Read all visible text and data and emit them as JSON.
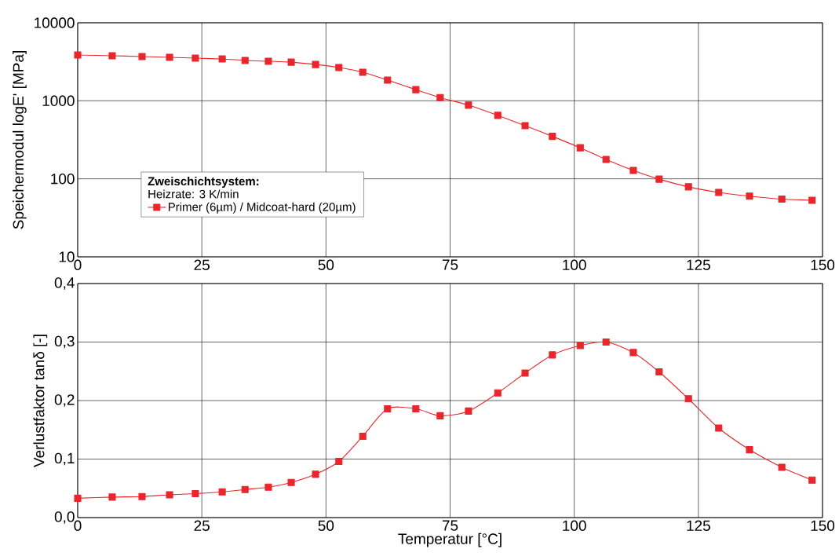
{
  "chart_data": [
    {
      "type": "line",
      "ylabel": "Speichermodul logE' [MPa]",
      "legend_title": "Zweischichtsystem:",
      "annotations": [
        "Heizrate: 3 K/min"
      ],
      "x": [
        0,
        6.95,
        12.96,
        18.5,
        23.7,
        29.1,
        33.7,
        38.4,
        43.0,
        47.9,
        52.6,
        57.4,
        62.4,
        68.1,
        73.0,
        78.7,
        84.6,
        90.1,
        95.6,
        101.2,
        106.4,
        111.9,
        117.1,
        123.0,
        129.1,
        135.3,
        141.8,
        147.9
      ],
      "series": [
        {
          "name": "Primer (6µm) / Midcoat-hard (20µm)",
          "color": "#e8262b",
          "values": [
            3860,
            3780,
            3690,
            3610,
            3520,
            3440,
            3290,
            3210,
            3130,
            2920,
            2670,
            2320,
            1840,
            1390,
            1100,
            880,
            650,
            480,
            350,
            250,
            177,
            128,
            99,
            79,
            67,
            60,
            55,
            53
          ]
        }
      ],
      "xlim": [
        0,
        150
      ],
      "ylim": [
        10,
        10000
      ],
      "xticks": [
        0,
        25,
        50,
        75,
        100,
        125,
        150
      ],
      "yticks": [
        10,
        100,
        1000,
        10000
      ],
      "log": "y",
      "grid": true,
      "marker": "square",
      "line_style": "solid",
      "legend": "bottom left"
    },
    {
      "type": "line",
      "xlabel": "Temperatur [°C]",
      "ylabel": "Verlustfaktor tanδ [-]",
      "x": [
        0,
        6.95,
        12.96,
        18.5,
        23.7,
        29.1,
        33.7,
        38.4,
        43.0,
        47.9,
        52.6,
        57.4,
        62.4,
        68.1,
        73.0,
        78.7,
        84.6,
        90.1,
        95.6,
        101.2,
        106.4,
        111.9,
        117.1,
        123.0,
        129.1,
        135.3,
        141.8,
        147.9
      ],
      "series": [
        {
          "color": "#e8262b",
          "values": [
            0.033,
            0.035,
            0.036,
            0.039,
            0.041,
            0.044,
            0.048,
            0.052,
            0.06,
            0.074,
            0.096,
            0.139,
            0.186,
            0.186,
            0.174,
            0.182,
            0.213,
            0.247,
            0.278,
            0.294,
            0.3,
            0.282,
            0.249,
            0.203,
            0.153,
            0.116,
            0.086,
            0.064
          ]
        }
      ],
      "xlim": [
        0,
        150
      ],
      "ylim": [
        0,
        0.4
      ],
      "xticks": [
        0,
        25,
        50,
        75,
        100,
        125,
        150
      ],
      "yticks": [
        {
          "value": 0,
          "label": "0,0"
        },
        {
          "value": 0.1,
          "label": "0,1"
        },
        {
          "value": 0.2,
          "label": "0,2"
        },
        {
          "value": 0.3,
          "label": "0,3"
        },
        {
          "value": 0.4,
          "label": "0,4"
        }
      ],
      "grid": true,
      "marker": "square",
      "line_style": "solid",
      "legend": false
    }
  ]
}
